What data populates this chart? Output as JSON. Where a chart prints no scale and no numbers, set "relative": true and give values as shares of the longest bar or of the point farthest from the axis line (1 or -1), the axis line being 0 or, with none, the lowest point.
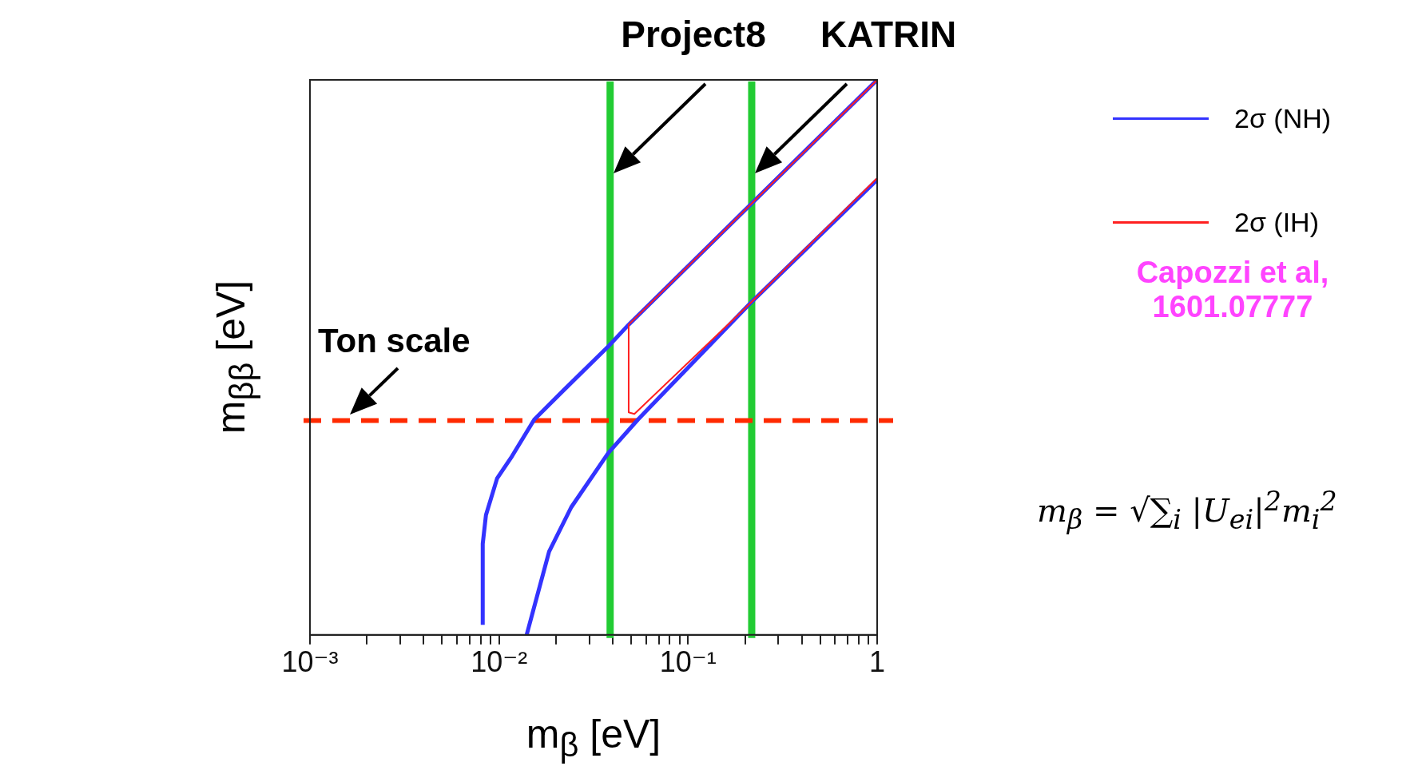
{
  "chart_data": {
    "type": "line",
    "relative": true,
    "xlabel": "m$_{β}$ [eV]",
    "ylabel": "m$_{ββ}$ [eV]",
    "log": "x",
    "marker": "none",
    "legend": "right",
    "tick_labels": "x",
    "xlim": [
      0.001,
      1
    ],
    "xticks": [
      {
        "value": 0.001,
        "label": "10⁻³"
      },
      {
        "value": 0.002,
        "label": null
      },
      {
        "value": 0.003,
        "label": null
      },
      {
        "value": 0.004,
        "label": null
      },
      {
        "value": 0.005,
        "label": null
      },
      {
        "value": 0.006,
        "label": null
      },
      {
        "value": 0.007,
        "label": null
      },
      {
        "value": 0.008,
        "label": null
      },
      {
        "value": 0.009,
        "label": null
      },
      {
        "value": 0.01,
        "label": "10⁻²"
      },
      {
        "value": 0.02,
        "label": null
      },
      {
        "value": 0.03,
        "label": null
      },
      {
        "value": 0.04,
        "label": null
      },
      {
        "value": 0.05,
        "label": null
      },
      {
        "value": 0.06,
        "label": null
      },
      {
        "value": 0.07,
        "label": null
      },
      {
        "value": 0.08,
        "label": null
      },
      {
        "value": 0.09,
        "label": null
      },
      {
        "value": 0.1,
        "label": "10⁻¹"
      },
      {
        "value": 0.2,
        "label": null
      },
      {
        "value": 0.3,
        "label": null
      },
      {
        "value": 0.4,
        "label": null
      },
      {
        "value": 0.5,
        "label": null
      },
      {
        "value": 0.6,
        "label": null
      },
      {
        "value": 0.7,
        "label": null
      },
      {
        "value": 0.8,
        "label": null
      },
      {
        "value": 0.9,
        "label": null
      },
      1
    ],
    "series": [
      {
        "name": "2σ (NH)",
        "color": "#3333ff",
        "x": [
          0.0082,
          0.0082,
          0.00853,
          0.00977,
          0.01172,
          0.01536,
          0.022,
          0.0379,
          0.0485,
          1,
          null,
          0.014,
          0.0184,
          0.0241,
          0.0379,
          0.0543,
          0.211,
          1
        ],
        "values": [
          0.018,
          0.164,
          0.216,
          0.282,
          0.322,
          0.388,
          0.441,
          0.52,
          0.559,
          1,
          null,
          0,
          0.15,
          0.23,
          0.328,
          0.388,
          0.596,
          0.82
        ]
      },
      {
        "name": "2σ (IH)",
        "color": "#ff2020",
        "x": [
          1,
          0.0485,
          0.0485,
          0.052,
          0.211,
          1
        ],
        "values": [
          1,
          0.559,
          0.401,
          0.398,
          0.596,
          0.823
        ]
      }
    ],
    "ref_lines": [
      {
        "axis": "x",
        "value": 0.0387,
        "label": "Project8",
        "color": "#22cc33"
      },
      {
        "axis": "x",
        "value": 0.217,
        "label": "KATRIN",
        "color": "#22cc33"
      },
      {
        "axis": "y",
        "value": 0.386,
        "label": "Ton scale",
        "color": "#ff2a00",
        "line_style": "dashed"
      }
    ],
    "annotations": [
      "Capozzi et al, 1601.07777",
      "m$_{β}$ = √∑$_{i}$ |U$_{ei}$|$^{2}$m$_{i}$$^{2}$"
    ]
  }
}
